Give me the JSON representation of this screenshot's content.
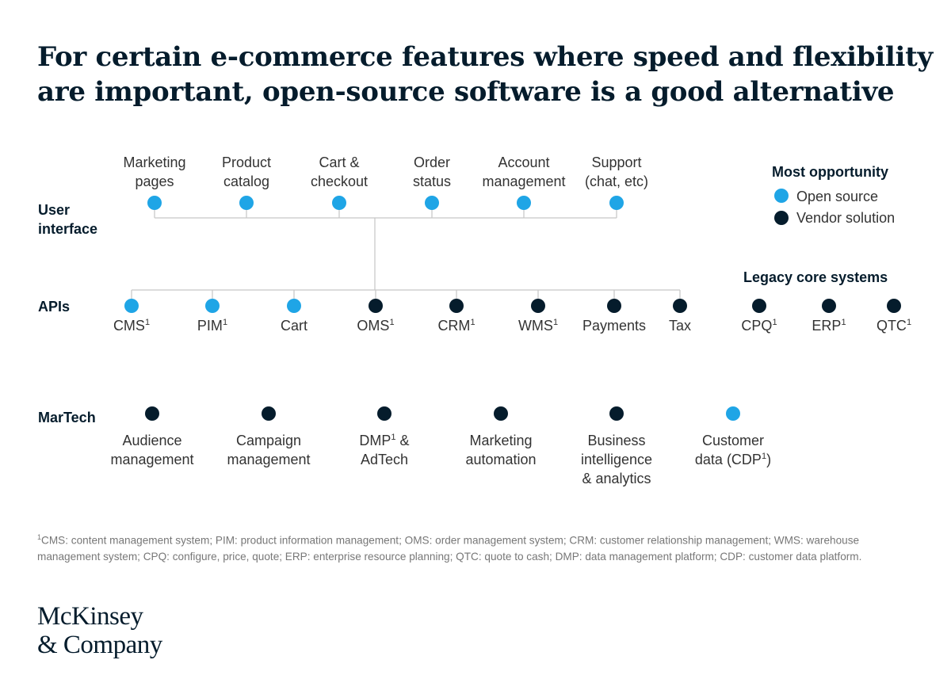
{
  "title": {
    "line1": "For certain e-commerce features where speed and flexibility",
    "line2": "are important, open-source software is a good alternative"
  },
  "colors": {
    "open_source": "#1fa5e6",
    "vendor": "#051c2c",
    "line": "#c8c8c8"
  },
  "rows": {
    "user_interface": [
      "User",
      "interface"
    ],
    "apis": [
      "APIs"
    ],
    "martech": [
      "MarTech"
    ]
  },
  "ui_items": [
    {
      "lines": [
        "Marketing",
        "pages"
      ],
      "type": "open"
    },
    {
      "lines": [
        "Product",
        "catalog"
      ],
      "type": "open"
    },
    {
      "lines": [
        "Cart &",
        "checkout"
      ],
      "type": "open"
    },
    {
      "lines": [
        "Order",
        "status"
      ],
      "type": "open"
    },
    {
      "lines": [
        "Account",
        "management"
      ],
      "type": "open"
    },
    {
      "lines": [
        "Support",
        "(chat, etc)"
      ],
      "type": "open"
    }
  ],
  "api_items": [
    {
      "label": "CMS",
      "sup": "1",
      "type": "open"
    },
    {
      "label": "PIM",
      "sup": "1",
      "type": "open"
    },
    {
      "label": "Cart",
      "sup": "",
      "type": "open"
    },
    {
      "label": "OMS",
      "sup": "1",
      "type": "vendor"
    },
    {
      "label": "CRM",
      "sup": "1",
      "type": "vendor"
    },
    {
      "label": "WMS",
      "sup": "1",
      "type": "vendor"
    },
    {
      "label": "Payments",
      "sup": "",
      "type": "vendor"
    },
    {
      "label": "Tax",
      "sup": "",
      "type": "vendor"
    }
  ],
  "legacy": {
    "title": "Legacy core systems",
    "items": [
      {
        "label": "CPQ",
        "sup": "1",
        "type": "vendor"
      },
      {
        "label": "ERP",
        "sup": "1",
        "type": "vendor"
      },
      {
        "label": "QTC",
        "sup": "1",
        "type": "vendor"
      }
    ]
  },
  "martech_items": [
    {
      "lines": [
        [
          "Audience",
          ""
        ],
        [
          "management",
          ""
        ]
      ],
      "type": "vendor"
    },
    {
      "lines": [
        [
          "Campaign",
          ""
        ],
        [
          "management",
          ""
        ]
      ],
      "type": "vendor"
    },
    {
      "lines": [
        [
          "DMP",
          "1",
          " &"
        ],
        [
          "AdTech",
          ""
        ]
      ],
      "type": "vendor"
    },
    {
      "lines": [
        [
          "Marketing",
          ""
        ],
        [
          "automation",
          ""
        ]
      ],
      "type": "vendor"
    },
    {
      "lines": [
        [
          "Business",
          ""
        ],
        [
          "intelligence",
          ""
        ],
        [
          "& analytics",
          ""
        ]
      ],
      "type": "vendor"
    },
    {
      "lines": [
        [
          "Customer",
          ""
        ],
        [
          "data (CDP",
          "1",
          ")"
        ]
      ],
      "type": "open"
    }
  ],
  "legend": {
    "title": "Most opportunity",
    "open_label": "Open source",
    "vendor_label": "Vendor solution"
  },
  "footnote": {
    "sup": "1",
    "text": "CMS: content management system; PIM: product information management; OMS: order management system; CRM: customer relationship management; WMS: warehouse management system; CPQ: configure, price, quote; ERP: enterprise resource planning; QTC: quote to cash; DMP: data management platform; CDP: customer data platform."
  },
  "logo": {
    "line1": "McKinsey",
    "line2": "& Company"
  }
}
